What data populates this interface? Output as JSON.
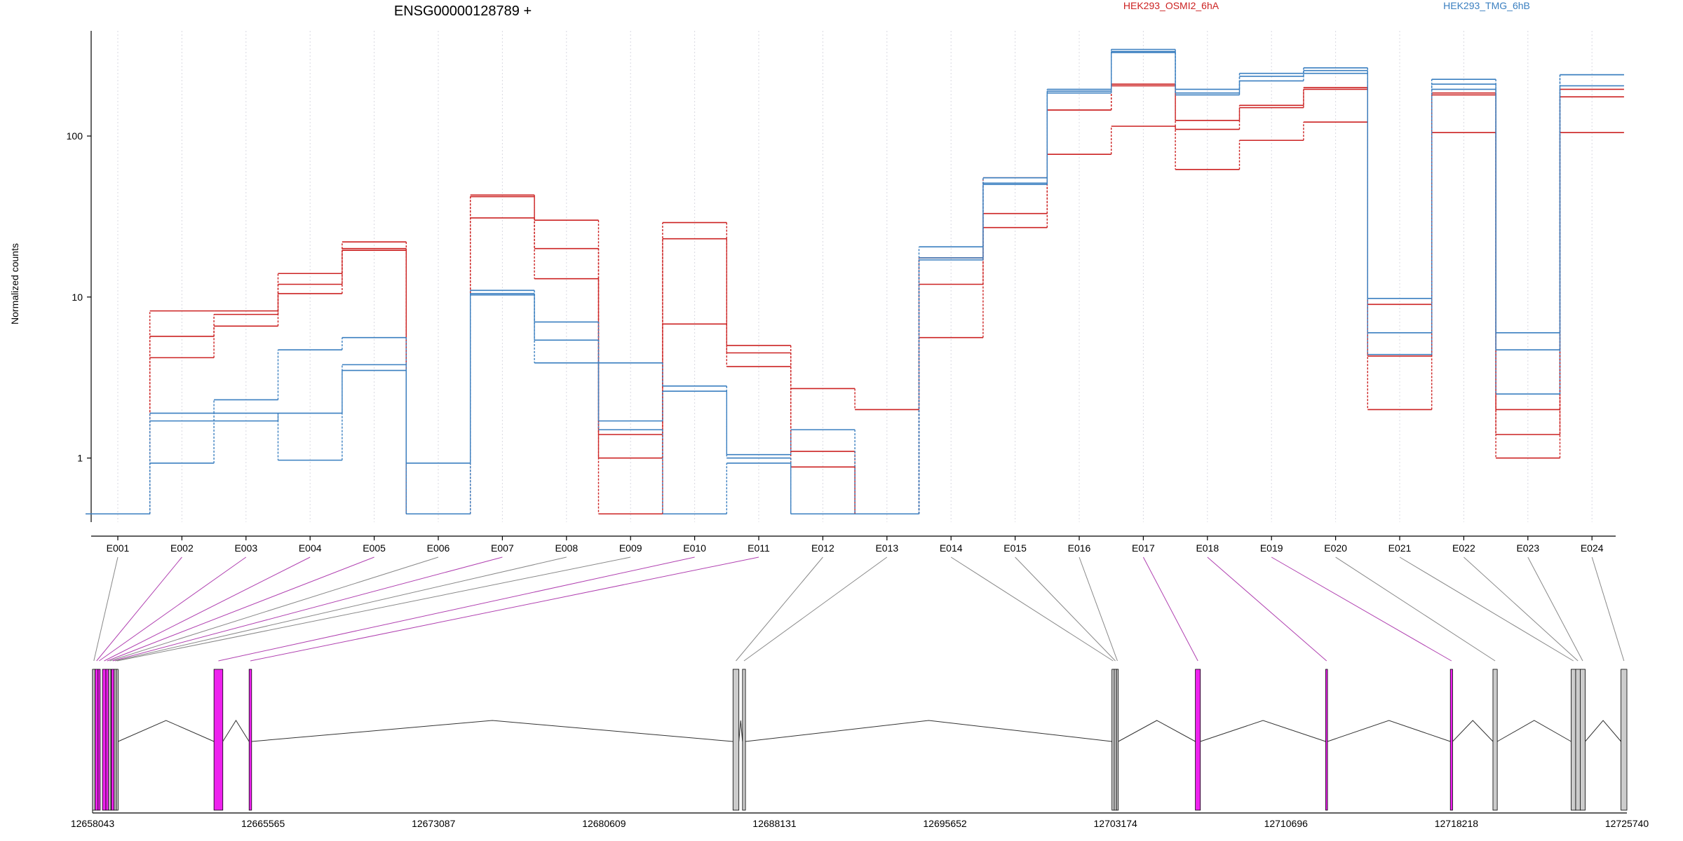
{
  "chart_data": {
    "type": "line",
    "title": "ENSG00000128789 +",
    "ylabel": "Normalized counts",
    "y_scale": "log",
    "y_ticks": [
      "1",
      "10",
      "100"
    ],
    "ylim": [
      0.4,
      450
    ],
    "legend": [
      {
        "label": "HEK293_OSMI2_6hA",
        "color": "#cc2222"
      },
      {
        "label": "HEK293_TMG_6hB",
        "color": "#3a7fc0"
      }
    ],
    "categories": [
      "E001",
      "E002",
      "E003",
      "E004",
      "E005",
      "E006",
      "E007",
      "E008",
      "E009",
      "E010",
      "E011",
      "E012",
      "E013",
      "E014",
      "E015",
      "E016",
      "E017",
      "E018",
      "E019",
      "E020",
      "E021",
      "E022",
      "E023",
      "E024"
    ],
    "series": [
      {
        "group": "HEK293_OSMI2_6hA",
        "color": "#cc2222",
        "values": [
          0.45,
          8.2,
          8.2,
          14,
          22,
          0.45,
          43,
          30,
          1.4,
          29,
          5.0,
          2.7,
          2.0,
          17.5,
          55,
          145,
          210,
          125,
          155,
          200,
          9.0,
          185,
          2.0,
          195
        ]
      },
      {
        "group": "HEK293_OSMI2_6hA",
        "color": "#cc2222",
        "values": [
          0.45,
          5.7,
          7.8,
          12,
          20,
          0.45,
          42,
          20,
          1.0,
          23,
          4.5,
          1.1,
          0.45,
          12,
          33,
          145,
          205,
          110,
          150,
          195,
          4.3,
          180,
          1.4,
          175
        ]
      },
      {
        "group": "HEK293_OSMI2_6hA",
        "color": "#cc2222",
        "values": [
          0.45,
          4.2,
          6.6,
          10.5,
          19.5,
          0.45,
          31,
          13,
          0.45,
          6.8,
          3.7,
          0.88,
          0.45,
          5.6,
          27,
          77,
          115,
          62,
          94,
          122,
          2.0,
          105,
          1.0,
          105
        ]
      },
      {
        "group": "HEK293_TMG_6hB",
        "color": "#3a7fc0",
        "values": [
          0.45,
          1.9,
          2.3,
          4.7,
          5.6,
          0.93,
          11,
          7.0,
          3.9,
          2.8,
          1.05,
          1.5,
          0.45,
          20.5,
          55,
          195,
          345,
          195,
          245,
          265,
          9.8,
          225,
          6.0,
          240
        ]
      },
      {
        "group": "HEK293_TMG_6hB",
        "color": "#3a7fc0",
        "values": [
          0.45,
          1.7,
          1.7,
          1.9,
          3.8,
          0.45,
          10.5,
          5.4,
          1.7,
          2.6,
          1.0,
          0.45,
          0.45,
          17.5,
          51,
          190,
          335,
          185,
          235,
          255,
          6.0,
          210,
          4.7,
          240
        ]
      },
      {
        "group": "HEK293_TMG_6hB",
        "color": "#3a7fc0",
        "values": [
          0.45,
          0.93,
          1.9,
          0.97,
          3.5,
          0.45,
          10.3,
          3.9,
          1.5,
          0.45,
          0.93,
          0.45,
          0.45,
          17,
          50,
          185,
          330,
          180,
          220,
          245,
          4.4,
          195,
          2.5,
          205
        ]
      }
    ],
    "gene_axis_ticks": [
      "12658043",
      "12665565",
      "12673087",
      "12680609",
      "12688131",
      "12695652",
      "12703174",
      "12710696",
      "12718218",
      "12725740"
    ],
    "gene_range": [
      12658043,
      12725740
    ],
    "exons": [
      {
        "id": "E001",
        "start": 12658043,
        "end": 12658155,
        "highlight": "grey"
      },
      {
        "id": "E002",
        "start": 12658155,
        "end": 12658285,
        "highlight": "purple"
      },
      {
        "id": "E003",
        "start": 12658285,
        "end": 12658380,
        "highlight": "purple"
      },
      {
        "id": "E004",
        "start": 12658480,
        "end": 12658630,
        "highlight": "purple"
      },
      {
        "id": "E005",
        "start": 12658630,
        "end": 12658750,
        "highlight": "purple"
      },
      {
        "id": "E006",
        "start": 12658750,
        "end": 12658850,
        "highlight": "grey"
      },
      {
        "id": "E007",
        "start": 12658870,
        "end": 12658995,
        "highlight": "purple"
      },
      {
        "id": "E008",
        "start": 12658995,
        "end": 12659090,
        "highlight": "grey"
      },
      {
        "id": "E009",
        "start": 12659090,
        "end": 12659170,
        "highlight": "grey"
      },
      {
        "id": "E010",
        "start": 12663400,
        "end": 12663790,
        "highlight": "purple"
      },
      {
        "id": "E011",
        "start": 12664950,
        "end": 12665060,
        "highlight": "purple"
      },
      {
        "id": "E012",
        "start": 12686300,
        "end": 12686560,
        "highlight": "grey"
      },
      {
        "id": "E013",
        "start": 12686720,
        "end": 12686850,
        "highlight": "grey"
      },
      {
        "id": "E014",
        "start": 12703020,
        "end": 12703120,
        "highlight": "grey"
      },
      {
        "id": "E015",
        "start": 12703120,
        "end": 12703220,
        "highlight": "grey"
      },
      {
        "id": "E016",
        "start": 12703220,
        "end": 12703300,
        "highlight": "grey"
      },
      {
        "id": "E017",
        "start": 12706700,
        "end": 12706920,
        "highlight": "purple"
      },
      {
        "id": "E018",
        "start": 12712450,
        "end": 12712530,
        "highlight": "purple"
      },
      {
        "id": "E019",
        "start": 12717950,
        "end": 12718050,
        "highlight": "purple"
      },
      {
        "id": "E020",
        "start": 12719830,
        "end": 12720020,
        "highlight": "grey"
      },
      {
        "id": "E021",
        "start": 12723280,
        "end": 12723480,
        "highlight": "grey"
      },
      {
        "id": "E022",
        "start": 12723480,
        "end": 12723680,
        "highlight": "grey"
      },
      {
        "id": "E023",
        "start": 12723680,
        "end": 12723900,
        "highlight": "grey"
      },
      {
        "id": "E024",
        "start": 12725480,
        "end": 12725740,
        "highlight": "grey"
      }
    ],
    "grid": true
  }
}
